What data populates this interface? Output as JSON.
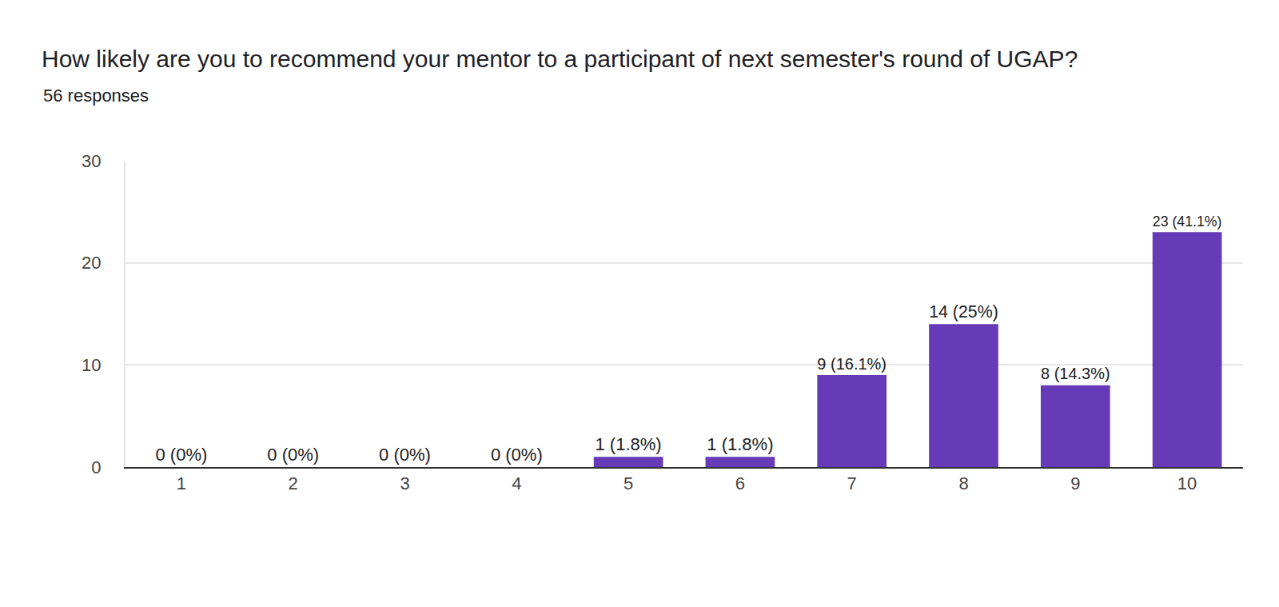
{
  "chart_data": {
    "type": "bar",
    "title": "How likely are you to recommend your mentor to a participant of next semester's round of UGAP?",
    "subtitle": "56 responses",
    "categories": [
      "1",
      "2",
      "3",
      "4",
      "5",
      "6",
      "7",
      "8",
      "9",
      "10"
    ],
    "values": [
      0,
      0,
      0,
      0,
      1,
      1,
      9,
      14,
      8,
      23
    ],
    "value_labels": [
      "0 (0%)",
      "0 (0%)",
      "0 (0%)",
      "0 (0%)",
      "1 (1.8%)",
      "1 (1.8%)",
      "9 (16.1%)",
      "14 (25%)",
      "8 (14.3%)",
      "23 (41.1%)"
    ],
    "data_labels": true,
    "color": "#673ab7",
    "ylim": [
      0,
      30
    ],
    "yticks": [
      0,
      10,
      20,
      30
    ],
    "grid": true
  }
}
